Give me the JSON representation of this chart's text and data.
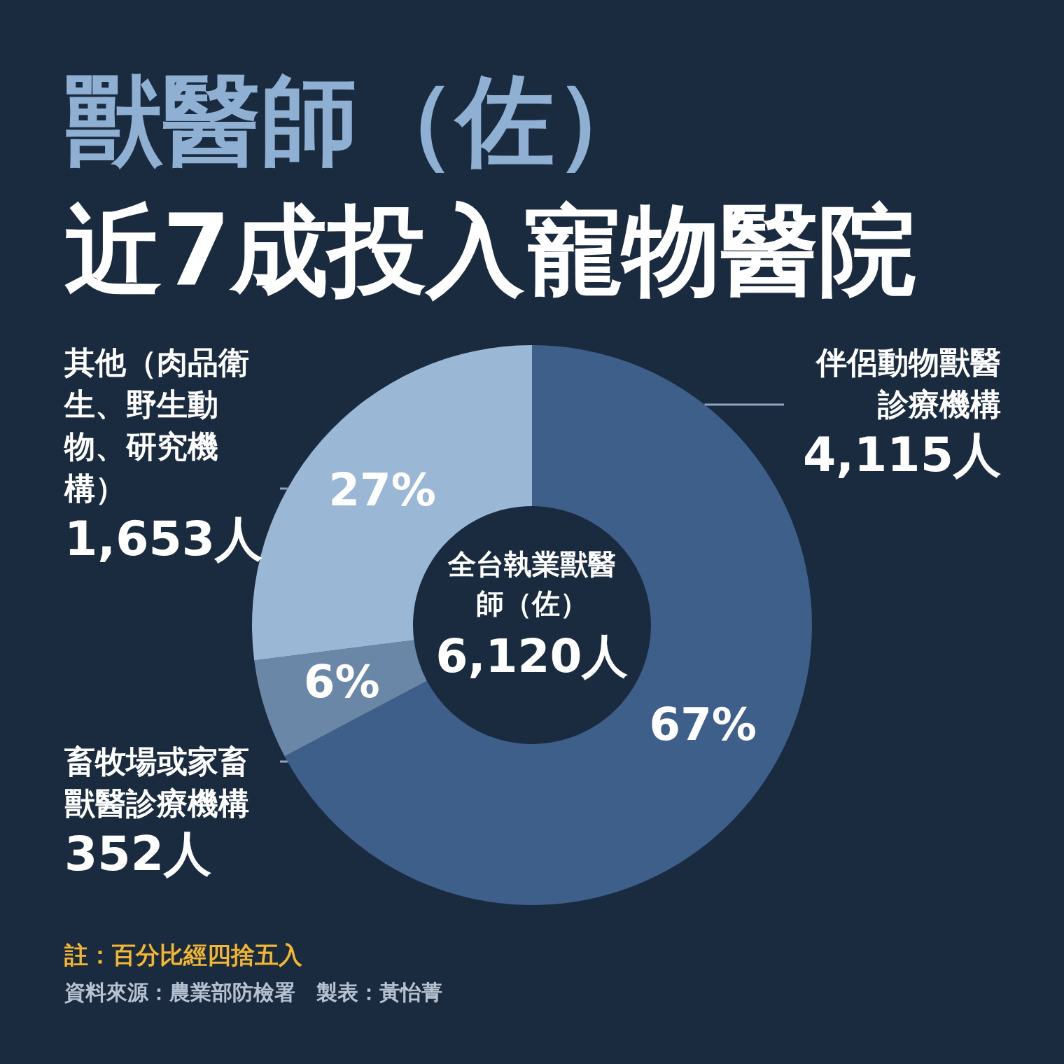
{
  "chart_data": {
    "type": "donut",
    "title": "獸醫師（佐）",
    "subtitle": "近7成投入寵物醫院",
    "categories": [
      "伴侶動物獸醫診療機構",
      "畜牧場或家畜獸醫診療機構",
      "其他（肉品衛生、野生動物、研究機構）"
    ],
    "values": [
      4115,
      352,
      1653
    ],
    "colors": [
      "#3e5f8a",
      "#6b87a8",
      "#9ab8d6"
    ],
    "value_labels": [
      "4,115人",
      "352人",
      "1,653人"
    ],
    "annotations": [
      {
        "text": "67%",
        "x": "伴侶動物獸醫診療機構"
      },
      {
        "text": "6%",
        "x": "畜牧場或家畜獸醫診療機構"
      },
      {
        "text": "27%",
        "x": "其他（肉品衛生、野生動物、研究機構）"
      },
      "全台執業獸醫師（佐）",
      "6,120人",
      "註：百分比經四捨五入",
      "資料來源：農業部防檢署　製表：黃怡菁"
    ]
  }
}
